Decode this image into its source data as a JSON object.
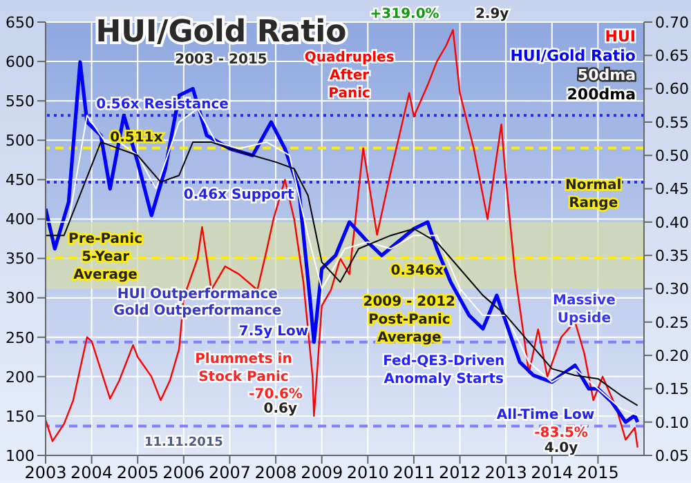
{
  "chart_data": {
    "type": "line",
    "title": "HUI/Gold Ratio",
    "subtitle": "2003 - 2015",
    "xlim": [
      2003,
      2016
    ],
    "xticks": [
      2003,
      2004,
      2005,
      2006,
      2007,
      2008,
      2009,
      2010,
      2011,
      2012,
      2013,
      2014,
      2015
    ],
    "ylim": [
      100,
      650
    ],
    "yticks": [
      100,
      150,
      200,
      250,
      300,
      350,
      400,
      450,
      500,
      550,
      600,
      650
    ],
    "y2lim": [
      0.05,
      0.7
    ],
    "y2ticks": [
      0.05,
      {
        "value": 0.1,
        "label": "0.10"
      },
      0.15,
      {
        "value": 0.2,
        "label": "0.20"
      },
      0.25,
      {
        "value": 0.3,
        "label": "0.30"
      },
      0.35,
      {
        "value": 0.4,
        "label": "0.40"
      },
      0.45,
      {
        "value": 0.5,
        "label": "0.50"
      },
      0.55,
      {
        "value": 0.6,
        "label": "0.60"
      },
      0.65,
      {
        "value": 0.7,
        "label": "0.70"
      }
    ],
    "grid": true,
    "legend": "top right",
    "series": [
      {
        "name": "HUI",
        "color": "#ff0000",
        "x": [
          2003.0,
          2003.15,
          2003.4,
          2003.6,
          2003.9,
          2004.0,
          2004.3,
          2004.4,
          2004.6,
          2004.9,
          2005.0,
          2005.3,
          2005.5,
          2005.7,
          2005.9,
          2006.0,
          2006.3,
          2006.4,
          2006.6,
          2006.9,
          2007.2,
          2007.6,
          2007.8,
          2007.95,
          2008.2,
          2008.4,
          2008.6,
          2008.8,
          2008.83,
          2009.0,
          2009.2,
          2009.4,
          2009.6,
          2009.9,
          2010.2,
          2010.5,
          2010.9,
          2011.0,
          2011.3,
          2011.5,
          2011.7,
          2011.85,
          2012.0,
          2012.3,
          2012.6,
          2012.9,
          2013.0,
          2013.2,
          2013.5,
          2013.7,
          2013.9,
          2014.2,
          2014.5,
          2014.7,
          2014.9,
          2015.1,
          2015.4,
          2015.6,
          2015.8,
          2015.86
        ],
        "values": [
          145,
          118,
          140,
          170,
          250,
          245,
          190,
          172,
          195,
          240,
          225,
          200,
          170,
          195,
          235,
          300,
          350,
          390,
          310,
          340,
          330,
          310,
          360,
          400,
          450,
          400,
          320,
          200,
          150,
          290,
          310,
          350,
          330,
          490,
          380,
          460,
          560,
          530,
          570,
          600,
          620,
          640,
          560,
          490,
          400,
          520,
          450,
          330,
          205,
          260,
          200,
          250,
          270,
          230,
          170,
          200,
          160,
          120,
          135,
          110
        ]
      },
      {
        "name": "HUI/Gold Ratio",
        "color": "#0000ff",
        "axis": "y2",
        "x": [
          2003.0,
          2003.2,
          2003.5,
          2003.75,
          2003.9,
          2004.2,
          2004.4,
          2004.7,
          2005.0,
          2005.3,
          2005.6,
          2005.9,
          2006.2,
          2006.5,
          2007.0,
          2007.5,
          2007.9,
          2008.2,
          2008.5,
          2008.75,
          2008.83,
          2009.0,
          2009.3,
          2009.6,
          2010.0,
          2010.3,
          2011.0,
          2011.3,
          2011.5,
          2011.8,
          2012.2,
          2012.5,
          2012.8,
          2013.0,
          2013.3,
          2013.6,
          2014.0,
          2014.5,
          2014.8,
          2015.0,
          2015.3,
          2015.6,
          2015.8,
          2015.86
        ],
        "values": [
          0.42,
          0.36,
          0.43,
          0.64,
          0.55,
          0.53,
          0.45,
          0.56,
          0.49,
          0.41,
          0.48,
          0.59,
          0.6,
          0.53,
          0.51,
          0.5,
          0.55,
          0.51,
          0.45,
          0.28,
          0.22,
          0.33,
          0.35,
          0.4,
          0.37,
          0.35,
          0.39,
          0.4,
          0.36,
          0.31,
          0.26,
          0.24,
          0.29,
          0.25,
          0.19,
          0.17,
          0.16,
          0.185,
          0.15,
          0.15,
          0.13,
          0.1,
          0.11,
          0.1
        ]
      },
      {
        "name": "50dma",
        "color": "#ffffff",
        "axis": "y2",
        "x": [
          2003.0,
          2003.5,
          2003.9,
          2004.3,
          2004.6,
          2005.0,
          2005.4,
          2005.9,
          2006.3,
          2006.7,
          2007.2,
          2007.8,
          2008.3,
          2008.7,
          2009.0,
          2009.5,
          2010.0,
          2010.5,
          2011.0,
          2011.5,
          2012.0,
          2012.5,
          2013.0,
          2013.5,
          2014.0,
          2014.5,
          2015.0,
          2015.5,
          2015.86
        ],
        "values": [
          0.4,
          0.4,
          0.56,
          0.52,
          0.52,
          0.5,
          0.45,
          0.55,
          0.57,
          0.52,
          0.51,
          0.52,
          0.5,
          0.38,
          0.3,
          0.36,
          0.37,
          0.36,
          0.38,
          0.38,
          0.3,
          0.26,
          0.26,
          0.19,
          0.16,
          0.18,
          0.15,
          0.12,
          0.11
        ]
      },
      {
        "name": "200dma",
        "color": "#000000",
        "axis": "y2",
        "x": [
          2003.0,
          2003.4,
          2003.8,
          2004.2,
          2004.6,
          2005.0,
          2005.5,
          2005.9,
          2006.2,
          2006.6,
          2007.0,
          2007.5,
          2008.0,
          2008.4,
          2008.7,
          2009.0,
          2009.4,
          2009.8,
          2010.5,
          2011.0,
          2011.5,
          2012.0,
          2012.5,
          2013.0,
          2013.5,
          2014.0,
          2014.5,
          2015.0,
          2015.5,
          2015.86
        ],
        "values": [
          0.38,
          0.38,
          0.45,
          0.52,
          0.51,
          0.5,
          0.46,
          0.47,
          0.52,
          0.52,
          0.51,
          0.5,
          0.49,
          0.48,
          0.44,
          0.34,
          0.31,
          0.36,
          0.38,
          0.39,
          0.37,
          0.33,
          0.29,
          0.26,
          0.22,
          0.18,
          0.17,
          0.165,
          0.14,
          0.125
        ]
      }
    ],
    "bands": [
      {
        "axis": "y2",
        "from": 0.3,
        "to": 0.4,
        "label": "Normal Range",
        "color": "#d6dcae"
      }
    ],
    "ref_lines": [
      {
        "axis": "y2",
        "value": 0.56,
        "label": "0.56x Resistance",
        "color": "#2a2ae0",
        "line_style": "dotted"
      },
      {
        "axis": "y2",
        "value": 0.46,
        "label": "0.46x Support",
        "color": "#2a2ae0",
        "line_style": "dotted"
      },
      {
        "axis": "y2",
        "value": 0.511,
        "label": "0.511x",
        "color": "#ffee00",
        "line_style": "dashed"
      },
      {
        "axis": "y2",
        "value": 0.346,
        "label": "0.346x",
        "color": "#ffee00",
        "line_style": "dashed"
      },
      {
        "axis": "y2",
        "value": 0.22,
        "label": "7.5y Low",
        "color": "#8080ff",
        "line_style": "dashed"
      },
      {
        "axis": "y2",
        "value": 0.094,
        "label": "All-Time Low",
        "color": "#8080ff",
        "line_style": "dashed"
      }
    ],
    "annotations": [
      "Quadruples After Panic",
      "+319.0%",
      "2.9y",
      "Pre-Panic 5-Year Average",
      "2009 - 2012 Post-Panic Average",
      "Massive Upside",
      "HUI Outperformance",
      "Gold Outperformance",
      "Plummets in Stock Panic",
      "-70.6%",
      "0.6y",
      "Fed-QE3-Driven Anomaly Starts",
      "-83.5%",
      "4.0y",
      "11.11.2015"
    ]
  }
}
